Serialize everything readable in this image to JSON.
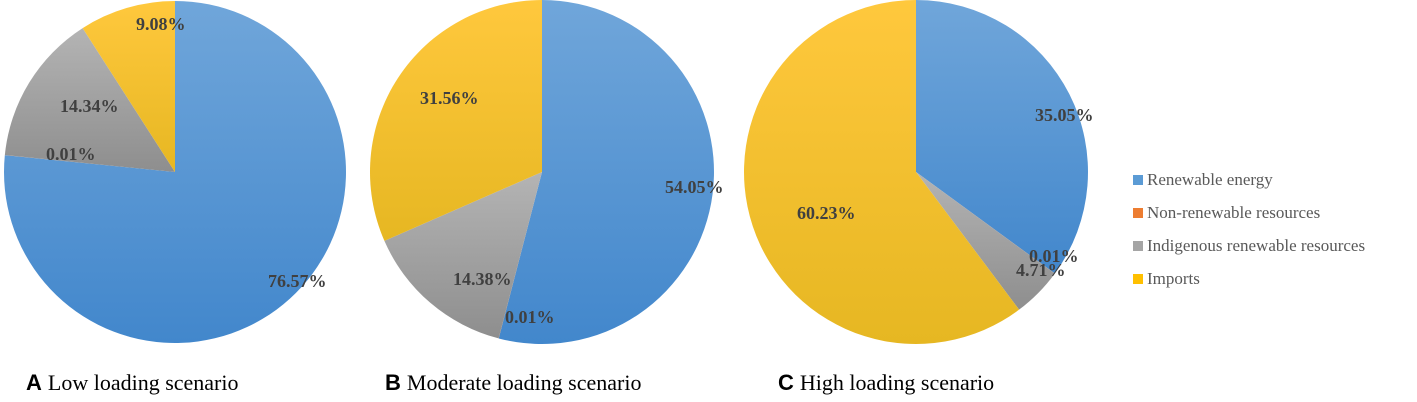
{
  "chart_data": [
    {
      "type": "pie",
      "title": "Low loading scenario",
      "panel": "A",
      "categories": [
        "Renewable energy",
        "Non-renewable resources",
        "Indigenous renewable resources",
        "Imports"
      ],
      "values": [
        76.57,
        0.01,
        14.34,
        9.08
      ],
      "labels": [
        "76.57%",
        "0.01%",
        "14.34%",
        "9.08%"
      ]
    },
    {
      "type": "pie",
      "title": "Moderate loading scenario",
      "panel": "B",
      "categories": [
        "Renewable energy",
        "Non-renewable resources",
        "Indigenous renewable resources",
        "Imports"
      ],
      "values": [
        54.05,
        0.01,
        14.38,
        31.56
      ],
      "labels": [
        "54.05%",
        "0.01%",
        "14.38%",
        "31.56%"
      ]
    },
    {
      "type": "pie",
      "title": "High loading scenario",
      "panel": "C",
      "categories": [
        "Renewable energy",
        "Non-renewable resources",
        "Indigenous renewable resources",
        "Imports"
      ],
      "values": [
        35.05,
        0.01,
        4.71,
        60.23
      ],
      "labels": [
        "35.05%",
        "0.01%",
        "4.71%",
        "60.23%"
      ]
    }
  ],
  "legend": {
    "position": "right",
    "items": [
      {
        "label": "Renewable energy",
        "color": "#5B9BD5"
      },
      {
        "label": "Non-renewable resources",
        "color": "#ED7D31"
      },
      {
        "label": "Indigenous renewable resources",
        "color": "#A5A5A5"
      },
      {
        "label": "Imports",
        "color": "#FFC000"
      }
    ]
  },
  "captions": [
    {
      "letter": "A",
      "text": "Low loading scenario"
    },
    {
      "letter": "B",
      "text": "Moderate loading scenario"
    },
    {
      "letter": "C",
      "text": "High loading scenario"
    }
  ]
}
